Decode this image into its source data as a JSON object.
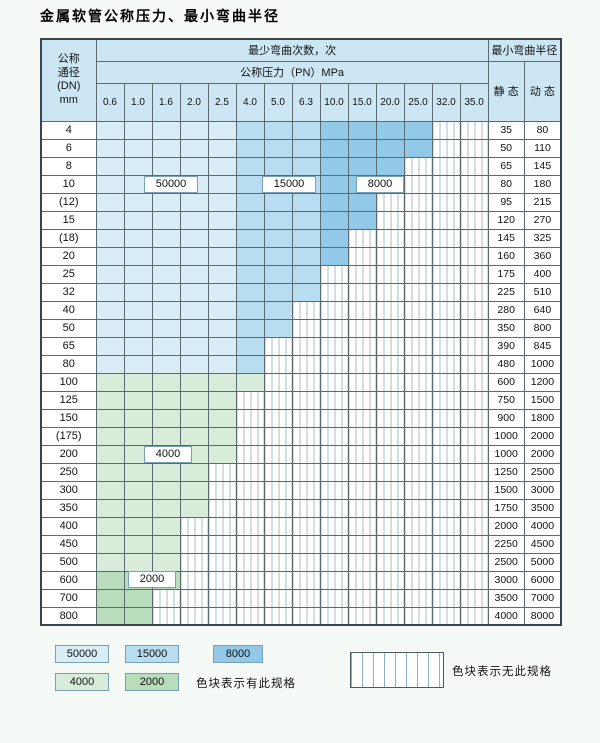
{
  "title": "金属软管公称压力、最小弯曲半径",
  "colors": {
    "header_bg": "#cde6f4",
    "c50000": "#d9edf7",
    "c15000": "#b9ddf0",
    "c8000": "#92c9e8",
    "c4000": "#d9ecd9",
    "c2000": "#b9dcba"
  },
  "table": {
    "header": {
      "dn_lines": [
        "公称",
        "通径",
        "(DN)",
        "mm"
      ],
      "cycles_label": "最少弯曲次数，次",
      "pressure_label": "公称压力（PN）MPa",
      "pressures": [
        "0.6",
        "1.0",
        "1.6",
        "2.0",
        "2.5",
        "4.0",
        "5.0",
        "6.3",
        "10.0",
        "15.0",
        "20.0",
        "25.0",
        "32.0",
        "35.0"
      ],
      "radius_label": "最小弯曲半径",
      "static_label": "静 态",
      "dynamic_label": "动 态"
    },
    "blue_zone_breaks": {
      "c50000_max_col": 4,
      "c15000_max_col": 7
    },
    "rows": [
      {
        "dn": "4",
        "static": "35",
        "dynamic": "80",
        "last": 11,
        "zone": "blue"
      },
      {
        "dn": "6",
        "static": "50",
        "dynamic": "110",
        "last": 11,
        "zone": "blue"
      },
      {
        "dn": "8",
        "static": "65",
        "dynamic": "145",
        "last": 10,
        "zone": "blue"
      },
      {
        "dn": "10",
        "static": "80",
        "dynamic": "180",
        "last": 10,
        "zone": "blue"
      },
      {
        "dn": "(12)",
        "static": "95",
        "dynamic": "215",
        "last": 9,
        "zone": "blue"
      },
      {
        "dn": "15",
        "static": "120",
        "dynamic": "270",
        "last": 9,
        "zone": "blue"
      },
      {
        "dn": "(18)",
        "static": "145",
        "dynamic": "325",
        "last": 8,
        "zone": "blue"
      },
      {
        "dn": "20",
        "static": "160",
        "dynamic": "360",
        "last": 8,
        "zone": "blue"
      },
      {
        "dn": "25",
        "static": "175",
        "dynamic": "400",
        "last": 7,
        "zone": "blue"
      },
      {
        "dn": "32",
        "static": "225",
        "dynamic": "510",
        "last": 7,
        "zone": "blue"
      },
      {
        "dn": "40",
        "static": "280",
        "dynamic": "640",
        "last": 6,
        "zone": "blue"
      },
      {
        "dn": "50",
        "static": "350",
        "dynamic": "800",
        "last": 6,
        "zone": "blue"
      },
      {
        "dn": "65",
        "static": "390",
        "dynamic": "845",
        "last": 5,
        "zone": "blue"
      },
      {
        "dn": "80",
        "static": "480",
        "dynamic": "1000",
        "last": 5,
        "zone": "blue"
      },
      {
        "dn": "100",
        "static": "600",
        "dynamic": "1200",
        "last": 5,
        "zone": "green4000"
      },
      {
        "dn": "125",
        "static": "750",
        "dynamic": "1500",
        "last": 4,
        "zone": "green4000"
      },
      {
        "dn": "150",
        "static": "900",
        "dynamic": "1800",
        "last": 4,
        "zone": "green4000"
      },
      {
        "dn": "(175)",
        "static": "1000",
        "dynamic": "2000",
        "last": 4,
        "zone": "green4000"
      },
      {
        "dn": "200",
        "static": "1000",
        "dynamic": "2000",
        "last": 4,
        "zone": "green4000"
      },
      {
        "dn": "250",
        "static": "1250",
        "dynamic": "2500",
        "last": 3,
        "zone": "green4000"
      },
      {
        "dn": "300",
        "static": "1500",
        "dynamic": "3000",
        "last": 3,
        "zone": "green4000"
      },
      {
        "dn": "350",
        "static": "1750",
        "dynamic": "3500",
        "last": 3,
        "zone": "green4000"
      },
      {
        "dn": "400",
        "static": "2000",
        "dynamic": "4000",
        "last": 2,
        "zone": "green4000"
      },
      {
        "dn": "450",
        "static": "2250",
        "dynamic": "4500",
        "last": 2,
        "zone": "green4000"
      },
      {
        "dn": "500",
        "static": "2500",
        "dynamic": "5000",
        "last": 2,
        "zone": "green4000"
      },
      {
        "dn": "600",
        "static": "3000",
        "dynamic": "6000",
        "last": 2,
        "zone": "green2000"
      },
      {
        "dn": "700",
        "static": "3500",
        "dynamic": "7000",
        "last": 1,
        "zone": "green2000"
      },
      {
        "dn": "800",
        "static": "4000",
        "dynamic": "8000",
        "last": 1,
        "zone": "green2000"
      }
    ]
  },
  "overlays": {
    "l50000": "50000",
    "l15000": "15000",
    "l8000": "8000",
    "l4000": "4000",
    "l2000": "2000"
  },
  "legend": {
    "l50000": "50000",
    "l15000": "15000",
    "l8000": "8000",
    "l4000": "4000",
    "l2000": "2000",
    "has_spec_text": "色块表示有此规格",
    "no_spec_text": "色块表示无此规格"
  }
}
